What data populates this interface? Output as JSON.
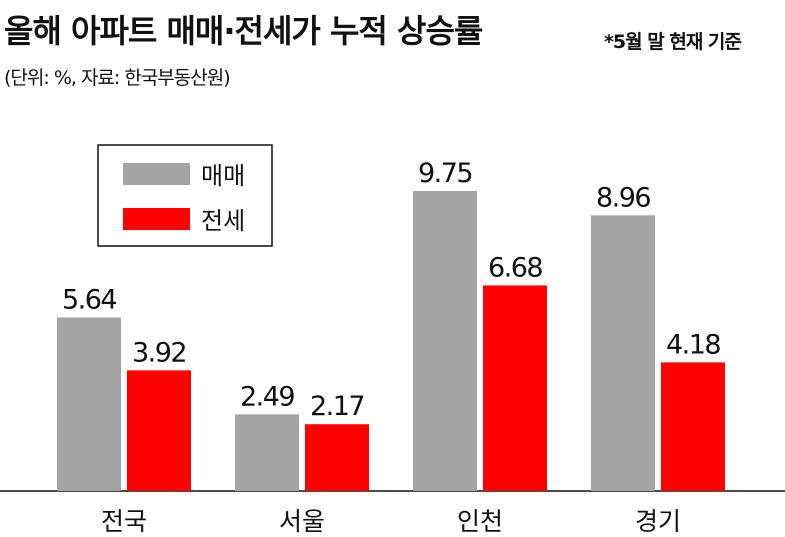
{
  "chart_data": {
    "type": "bar",
    "title": "올해 아파트 매매·전세가 누적 상승률",
    "subtitle": "*5월 말 현재 기준",
    "unit_note": "(단위: %, 자료: 한국부동산원)",
    "categories": [
      "전국",
      "서울",
      "인천",
      "경기"
    ],
    "series": [
      {
        "name": "매매",
        "color": "#a3a3a3",
        "values": [
          5.64,
          2.49,
          9.75,
          8.96
        ]
      },
      {
        "name": "전세",
        "color": "#ff0000",
        "values": [
          3.92,
          2.17,
          6.68,
          4.18
        ]
      }
    ]
  }
}
